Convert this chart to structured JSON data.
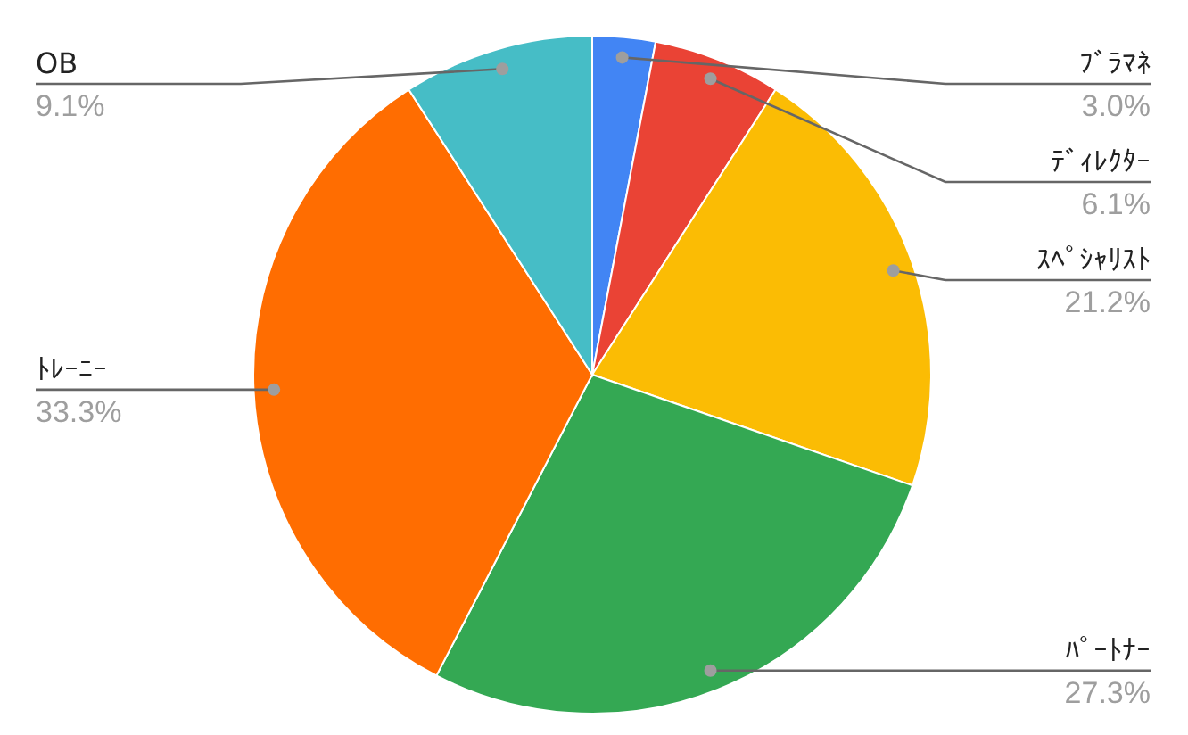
{
  "chart_data": {
    "type": "pie",
    "categories": [
      "ﾌﾞﾗﾏﾈ",
      "ﾃﾞｨﾚｸﾀｰ",
      "ｽﾍﾟｼｬﾘｽﾄ",
      "ﾊﾟｰﾄﾅｰ",
      "ﾄﾚｰﾆｰ",
      "OB"
    ],
    "values": [
      3.0,
      6.1,
      21.2,
      27.3,
      33.3,
      9.1
    ],
    "value_labels": [
      "3.0%",
      "6.1%",
      "21.2%",
      "27.3%",
      "33.3%",
      "9.1%"
    ],
    "colors": [
      "#4285f4",
      "#ea4335",
      "#fbbc04",
      "#34a853",
      "#ff6d01",
      "#46bdc6"
    ]
  }
}
